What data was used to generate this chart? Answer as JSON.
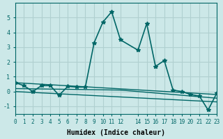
{
  "xlabel": "Humidex (Indice chaleur)",
  "ylabel": "",
  "bg_color": "#cce8e8",
  "grid_color": "#b0d0d0",
  "line_color": "#006666",
  "xlim": [
    0,
    23
  ],
  "ylim": [
    -1.5,
    6
  ],
  "x_ticks": [
    0,
    1,
    2,
    3,
    4,
    5,
    6,
    7,
    8,
    9,
    10,
    11,
    12,
    14,
    15,
    16,
    17,
    18,
    19,
    20,
    21,
    22,
    23
  ],
  "x_tick_labels": [
    "0",
    "1",
    "2",
    "3",
    "4",
    "5",
    "6",
    "7",
    "8",
    "9",
    "10",
    "11",
    "12",
    "14",
    "15",
    "16",
    "17",
    "18",
    "19",
    "20",
    "21",
    "22",
    "23"
  ],
  "yticks": [
    -1,
    0,
    1,
    2,
    3,
    4,
    5
  ],
  "series": [
    {
      "x": [
        0,
        1,
        2,
        3,
        4,
        5,
        6,
        7,
        8,
        9,
        10,
        11,
        12,
        14,
        15,
        16,
        17,
        18,
        19,
        20,
        21,
        22,
        23
      ],
      "y": [
        0.6,
        0.4,
        0.0,
        0.4,
        0.4,
        -0.25,
        0.35,
        0.3,
        0.3,
        3.3,
        4.7,
        5.4,
        3.5,
        2.8,
        4.6,
        1.7,
        2.1,
        0.1,
        0.0,
        -0.2,
        -0.3,
        -1.25,
        -0.1
      ],
      "marker": "*",
      "linewidth": 1.2
    },
    {
      "x": [
        0,
        23
      ],
      "y": [
        0.6,
        -0.2
      ],
      "marker": null,
      "linewidth": 1.0
    },
    {
      "x": [
        0,
        12,
        23
      ],
      "y": [
        0.2,
        0.1,
        -0.45
      ],
      "marker": null,
      "linewidth": 1.0
    },
    {
      "x": [
        0,
        23
      ],
      "y": [
        0.0,
        -0.7
      ],
      "marker": null,
      "linewidth": 1.0
    }
  ]
}
